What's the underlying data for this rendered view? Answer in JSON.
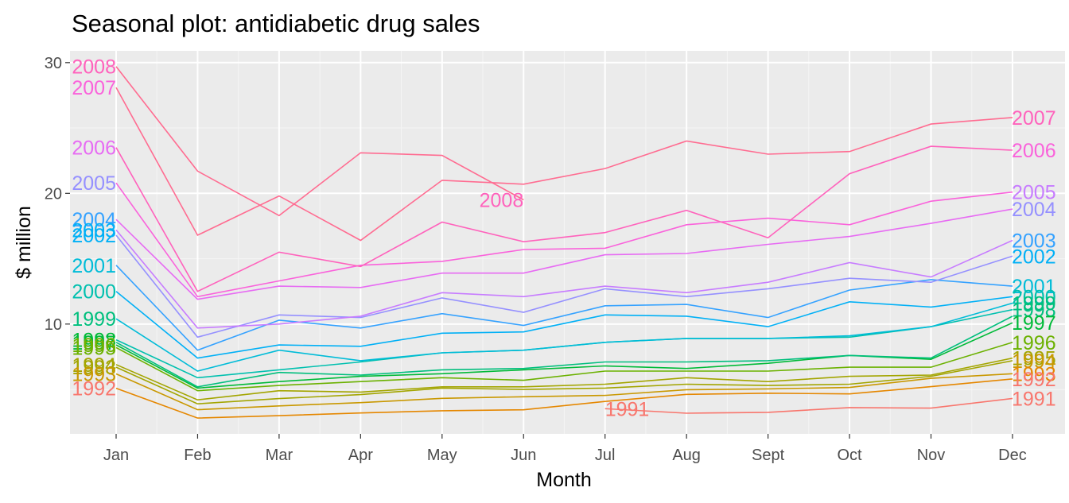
{
  "chart_data": {
    "type": "line",
    "title": "Seasonal plot: antidiabetic drug sales",
    "xlabel": "Month",
    "ylabel": "$ million",
    "categories": [
      "Jan",
      "Feb",
      "Mar",
      "Apr",
      "May",
      "Jun",
      "Jul",
      "Aug",
      "Sept",
      "Oct",
      "Nov",
      "Dec"
    ],
    "ylim": [
      1.6,
      30.9
    ],
    "yticks": [
      10,
      20,
      30
    ],
    "grid": true,
    "legend": "none",
    "series": [
      {
        "name": "1991",
        "color": "#F8766D",
        "start_month": 7,
        "values": [
          null,
          null,
          null,
          null,
          null,
          null,
          3.53,
          3.18,
          3.25,
          3.61,
          3.57,
          4.31
        ]
      },
      {
        "name": "1992",
        "color": "#E58700",
        "start_month": 1,
        "values": [
          5.09,
          2.81,
          2.99,
          3.2,
          3.37,
          3.44,
          4.08,
          4.62,
          4.71,
          4.66,
          5.21,
          5.8
        ]
      },
      {
        "name": "1993",
        "color": "#C99800",
        "start_month": 1,
        "values": [
          6.19,
          3.45,
          3.74,
          3.99,
          4.32,
          4.44,
          4.54,
          4.98,
          5.04,
          5.15,
          5.85,
          6.2
        ]
      },
      {
        "name": "1994",
        "color": "#A3A500",
        "start_month": 1,
        "values": [
          6.7,
          3.9,
          4.3,
          4.6,
          5.1,
          5.0,
          5.1,
          5.4,
          5.3,
          5.4,
          6.0,
          7.2
        ]
      },
      {
        "name": "1995",
        "color": "#A3A500",
        "start_month": 1,
        "values": [
          6.9,
          4.2,
          4.9,
          4.8,
          5.2,
          5.2,
          5.4,
          5.9,
          5.6,
          6.0,
          6.1,
          7.4
        ]
      },
      {
        "name": "1996",
        "color": "#6BB100",
        "start_month": 1,
        "values": [
          8.2,
          4.9,
          5.3,
          5.6,
          5.9,
          5.7,
          6.4,
          6.4,
          6.4,
          6.7,
          6.7,
          8.6
        ]
      },
      {
        "name": "1997",
        "color": "#00BA38",
        "start_month": 1,
        "values": [
          8.4,
          5.1,
          5.6,
          6.0,
          6.2,
          6.5,
          6.8,
          6.6,
          7.0,
          7.6,
          7.3,
          10.1
        ]
      },
      {
        "name": "1998",
        "color": "#00BF7D",
        "start_month": 1,
        "values": [
          8.6,
          5.2,
          6.3,
          6.1,
          6.5,
          6.6,
          7.1,
          7.1,
          7.2,
          7.6,
          7.4,
          10.6
        ]
      },
      {
        "name": "1999",
        "color": "#00C0AF",
        "start_month": 1,
        "values": [
          8.8,
          5.9,
          6.5,
          7.1,
          7.8,
          8.0,
          8.6,
          8.9,
          8.9,
          9.0,
          9.8,
          11.1
        ]
      },
      {
        "name": "2000",
        "color": "#00BCD8",
        "start_month": 1,
        "values": [
          10.4,
          6.4,
          8.0,
          7.2,
          7.8,
          8.0,
          8.6,
          8.9,
          8.9,
          9.1,
          9.8,
          11.6
        ]
      },
      {
        "name": "2001",
        "color": "#00B0F6",
        "start_month": 1,
        "values": [
          12.5,
          7.4,
          8.4,
          8.3,
          9.3,
          9.4,
          10.7,
          10.6,
          9.8,
          11.7,
          11.3,
          12.1
        ]
      },
      {
        "name": "2002",
        "color": "#35A2FF",
        "start_month": 1,
        "values": [
          14.5,
          8.0,
          10.3,
          9.7,
          10.8,
          9.9,
          11.4,
          11.5,
          10.5,
          12.6,
          13.4,
          12.9
        ]
      },
      {
        "name": "2003",
        "color": "#9590FF",
        "start_month": 1,
        "values": [
          16.8,
          9.0,
          10.7,
          10.5,
          12.0,
          10.9,
          12.7,
          12.1,
          12.7,
          13.5,
          13.2,
          15.2
        ]
      },
      {
        "name": "2004",
        "color": "#C77CFF",
        "start_month": 1,
        "values": [
          17.2,
          9.7,
          10.0,
          10.6,
          12.4,
          12.1,
          12.9,
          12.4,
          13.2,
          14.7,
          13.6,
          16.4
        ]
      },
      {
        "name": "2005",
        "color": "#E76BF3",
        "start_month": 1,
        "values": [
          18.0,
          11.9,
          12.9,
          12.8,
          13.9,
          13.9,
          15.3,
          15.4,
          16.1,
          16.7,
          17.7,
          18.8
        ]
      },
      {
        "name": "2006",
        "color": "#FA62DB",
        "start_month": 1,
        "values": [
          20.8,
          12.1,
          13.3,
          14.5,
          14.8,
          15.7,
          15.8,
          17.6,
          18.1,
          17.6,
          19.4,
          20.1
        ]
      },
      {
        "name": "2007",
        "color": "#FF62BC",
        "start_month": 1,
        "values": [
          23.5,
          12.5,
          15.5,
          14.4,
          17.8,
          16.3,
          17.0,
          18.7,
          16.6,
          21.5,
          23.6,
          23.3
        ]
      },
      {
        "name": "2008",
        "color": "#FF6C91",
        "start_month": 1,
        "values": [
          28.1,
          16.8,
          19.8,
          16.4,
          21.0,
          20.7,
          21.9,
          24.0,
          23.0,
          23.2,
          25.3,
          25.8
        ]
      },
      {
        "name": "2008b",
        "color": "#FF6C91",
        "start_month": 1,
        "values": [
          29.7,
          21.7,
          18.3,
          23.1,
          22.9,
          19.5,
          null,
          null,
          null,
          null,
          null,
          null
        ]
      }
    ],
    "start_labels": [
      {
        "text": "2008",
        "y": 29.7,
        "color": "#FF62BC"
      },
      {
        "text": "2007",
        "y": 28.1,
        "color": "#FA62DB"
      },
      {
        "text": "2006",
        "y": 23.5,
        "color": "#E76BF3"
      },
      {
        "text": "2005",
        "y": 20.8,
        "color": "#9590FF"
      },
      {
        "text": "2004",
        "y": 18.0,
        "color": "#35A2FF"
      },
      {
        "text": "2003",
        "y": 17.2,
        "color": "#00B0F6"
      },
      {
        "text": "2002",
        "y": 16.8,
        "color": "#00B0F6"
      },
      {
        "text": "2001",
        "y": 14.5,
        "color": "#00BCD8"
      },
      {
        "text": "2000",
        "y": 12.5,
        "color": "#00C0AF"
      },
      {
        "text": "1999",
        "y": 10.4,
        "color": "#00BF7D"
      },
      {
        "text": "1998",
        "y": 8.8,
        "color": "#00BA38"
      },
      {
        "text": "1997",
        "y": 8.6,
        "color": "#00BA38"
      },
      {
        "text": "1996",
        "y": 8.4,
        "color": "#6BB100"
      },
      {
        "text": "1995",
        "y": 8.2,
        "color": "#6BB100"
      },
      {
        "text": "1994",
        "y": 6.9,
        "color": "#A3A500"
      },
      {
        "text": "1993",
        "y": 6.7,
        "color": "#A3A500"
      },
      {
        "text": "1993",
        "y": 6.2,
        "color": "#C99800"
      },
      {
        "text": "1992",
        "y": 5.1,
        "color": "#F8766D"
      }
    ],
    "end_labels": [
      {
        "text": "2007",
        "y": 25.8,
        "color": "#FF62BC"
      },
      {
        "text": "2006",
        "y": 23.3,
        "color": "#FA62DB"
      },
      {
        "text": "2005",
        "y": 20.1,
        "color": "#C77CFF"
      },
      {
        "text": "2004",
        "y": 18.8,
        "color": "#9590FF"
      },
      {
        "text": "2003",
        "y": 16.4,
        "color": "#35A2FF"
      },
      {
        "text": "2002",
        "y": 15.2,
        "color": "#00B0F6"
      },
      {
        "text": "2001",
        "y": 12.9,
        "color": "#00BCD8"
      },
      {
        "text": "2000",
        "y": 12.1,
        "color": "#00C0AF"
      },
      {
        "text": "1999",
        "y": 11.6,
        "color": "#00BF7D"
      },
      {
        "text": "1998",
        "y": 11.1,
        "color": "#00BF7D"
      },
      {
        "text": "1997",
        "y": 10.1,
        "color": "#00BA38"
      },
      {
        "text": "1996",
        "y": 8.6,
        "color": "#6BB100"
      },
      {
        "text": "1995",
        "y": 7.4,
        "color": "#A3A500"
      },
      {
        "text": "1994",
        "y": 7.2,
        "color": "#C99800"
      },
      {
        "text": "1993",
        "y": 6.2,
        "color": "#E58700"
      },
      {
        "text": "1992",
        "y": 5.8,
        "color": "#F8766D"
      },
      {
        "text": "1991",
        "y": 4.3,
        "color": "#F8766D"
      }
    ],
    "inline_labels": [
      {
        "text": "2008",
        "month": "Jun",
        "y": 19.5,
        "color": "#FF62BC",
        "position": "left"
      },
      {
        "text": "1991",
        "month": "Jul",
        "y": 3.5,
        "color": "#F8766D",
        "position": "right"
      }
    ]
  }
}
